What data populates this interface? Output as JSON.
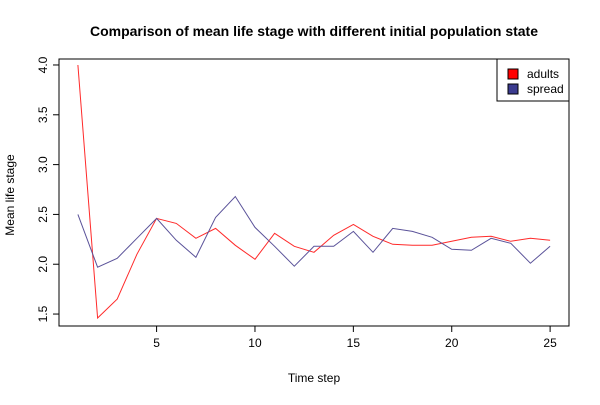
{
  "chart_data": {
    "type": "line",
    "title": "Comparison of mean life stage with different initial population state",
    "xlabel": "Time step",
    "ylabel": "Mean life stage",
    "x": [
      1,
      2,
      3,
      4,
      5,
      6,
      7,
      8,
      9,
      10,
      11,
      12,
      13,
      14,
      15,
      16,
      17,
      18,
      19,
      20,
      21,
      22,
      23,
      24,
      25
    ],
    "xlim": [
      0.04,
      25.96
    ],
    "ylim": [
      1.38,
      4.06
    ],
    "xticks": [
      5,
      10,
      15,
      20,
      25
    ],
    "yticks": [
      1.5,
      2.0,
      2.5,
      3.0,
      3.5,
      4.0
    ],
    "xtick_labels": [
      "5",
      "10",
      "15",
      "20",
      "25"
    ],
    "ytick_labels": [
      "1.5",
      "2.0",
      "2.5",
      "3.0",
      "3.5",
      "4.0"
    ],
    "grid": false,
    "legend_position": "top-right",
    "series": [
      {
        "name": "adults",
        "color": "#ff2a2a",
        "values": [
          4.0,
          1.46,
          1.65,
          2.1,
          2.46,
          2.41,
          2.26,
          2.36,
          2.19,
          2.05,
          2.31,
          2.18,
          2.12,
          2.29,
          2.4,
          2.28,
          2.2,
          2.19,
          2.19,
          2.23,
          2.27,
          2.28,
          2.23,
          2.26,
          2.24
        ]
      },
      {
        "name": "spread",
        "color": "#5a5299",
        "values": [
          2.5,
          1.97,
          2.06,
          2.26,
          2.46,
          2.24,
          2.07,
          2.47,
          2.68,
          2.37,
          2.18,
          1.98,
          2.18,
          2.18,
          2.33,
          2.12,
          2.36,
          2.33,
          2.27,
          2.15,
          2.14,
          2.26,
          2.21,
          2.01,
          2.18
        ]
      }
    ],
    "legend_swatch_colors": [
      "#ff0000",
      "#3b3b8f"
    ]
  }
}
